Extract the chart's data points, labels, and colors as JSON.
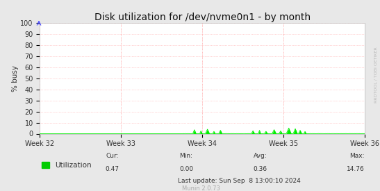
{
  "title": "Disk utilization for /dev/nvme0n1 - by month",
  "ylabel": "% busy",
  "plot_bg_color": "#ffffff",
  "fig_bg_color": "#e8e8e8",
  "grid_color": "#ffaaaa",
  "line_color": "#00ee00",
  "fill_color": "#00ee00",
  "ylim": [
    0,
    100
  ],
  "yticks": [
    0,
    10,
    20,
    30,
    40,
    50,
    60,
    70,
    80,
    90,
    100
  ],
  "x_labels": [
    "Week 32",
    "Week 33",
    "Week 34",
    "Week 35",
    "Week 36"
  ],
  "legend_label": "Utilization",
  "legend_color": "#00cc00",
  "cur_val": "0.47",
  "min_val": "0.00",
  "avg_val": "0.36",
  "max_val": "14.76",
  "last_update": "Last update: Sun Sep  8 13:00:10 2024",
  "munin_version": "Munin 2.0.73",
  "rrdtool_label": "RRDTOOL / TOBI OETIKER",
  "title_fontsize": 10,
  "axis_fontsize": 7,
  "legend_fontsize": 7.5,
  "footer_fontsize": 6.5
}
